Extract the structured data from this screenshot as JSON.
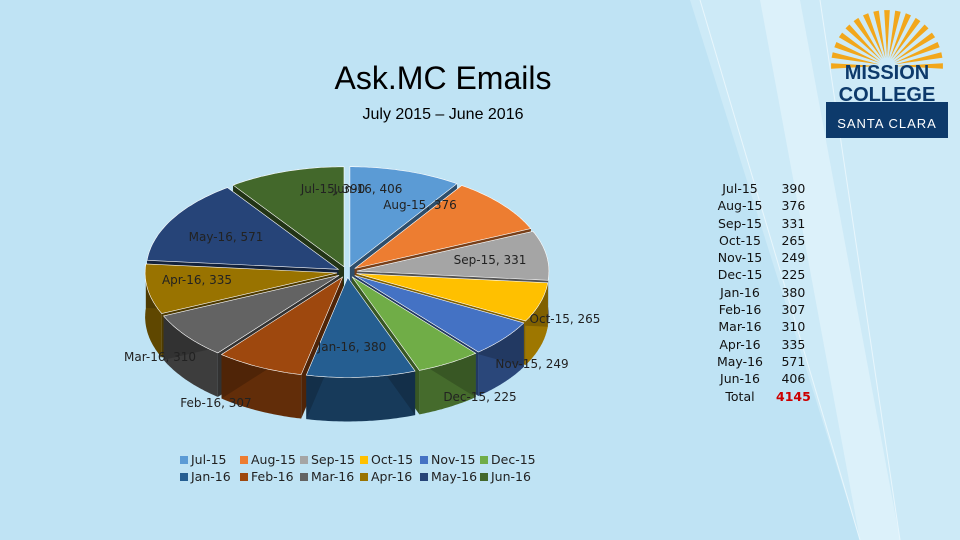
{
  "title": "Ask.MC Emails",
  "subtitle": "July 2015 – June 2016",
  "colors": {
    "background": "#bfe3f4",
    "total_value": "#cc0000",
    "logo_navy": "#0d3a6b",
    "logo_gold": "#f2a71b"
  },
  "logo": {
    "line1": "MISSION",
    "line2": "COLLEGE",
    "line3": "SANTA CLARA"
  },
  "chart_data": {
    "type": "pie",
    "style": "3d-exploded",
    "categories": [
      "Jul-15",
      "Aug-15",
      "Sep-15",
      "Oct-15",
      "Nov-15",
      "Dec-15",
      "Jan-16",
      "Feb-16",
      "Mar-16",
      "Apr-16",
      "May-16",
      "Jun-16"
    ],
    "values": [
      390,
      376,
      331,
      265,
      249,
      225,
      380,
      307,
      310,
      335,
      571,
      406
    ],
    "data_labels": [
      "Jul-15, 390",
      "Aug-15, 376",
      "Sep-15, 331",
      "Oct-15, 265",
      "Nov-15, 249",
      "Dec-15, 225",
      "Jan-16, 380",
      "Feb-16, 307",
      "Mar-16, 310",
      "Apr-16, 335",
      "May-16, 571",
      "Jun-16, 406"
    ],
    "colors": [
      "#5b9bd5",
      "#ed7d31",
      "#a5a5a5",
      "#ffc000",
      "#4472c4",
      "#70ad47",
      "#255e91",
      "#9e480e",
      "#636363",
      "#997300",
      "#264478",
      "#43682b"
    ],
    "legend": {
      "position": "bottom",
      "entries": [
        "Jul-15",
        "Aug-15",
        "Sep-15",
        "Oct-15",
        "Nov-15",
        "Dec-15",
        "Jan-16",
        "Feb-16",
        "Mar-16",
        "Apr-16",
        "May-16",
        "Jun-16"
      ]
    }
  },
  "table": {
    "rows": [
      {
        "label": "Jul-15",
        "value": "390"
      },
      {
        "label": "Aug-15",
        "value": "376"
      },
      {
        "label": "Sep-15",
        "value": "331"
      },
      {
        "label": "Oct-15",
        "value": "265"
      },
      {
        "label": "Nov-15",
        "value": "249"
      },
      {
        "label": "Dec-15",
        "value": "225"
      },
      {
        "label": "Jan-16",
        "value": "380"
      },
      {
        "label": "Feb-16",
        "value": "307"
      },
      {
        "label": "Mar-16",
        "value": "310"
      },
      {
        "label": "Apr-16",
        "value": "335"
      },
      {
        "label": "May-16",
        "value": "571"
      },
      {
        "label": "Jun-16",
        "value": "406"
      }
    ],
    "total": {
      "label": "Total",
      "value": "4145"
    }
  }
}
